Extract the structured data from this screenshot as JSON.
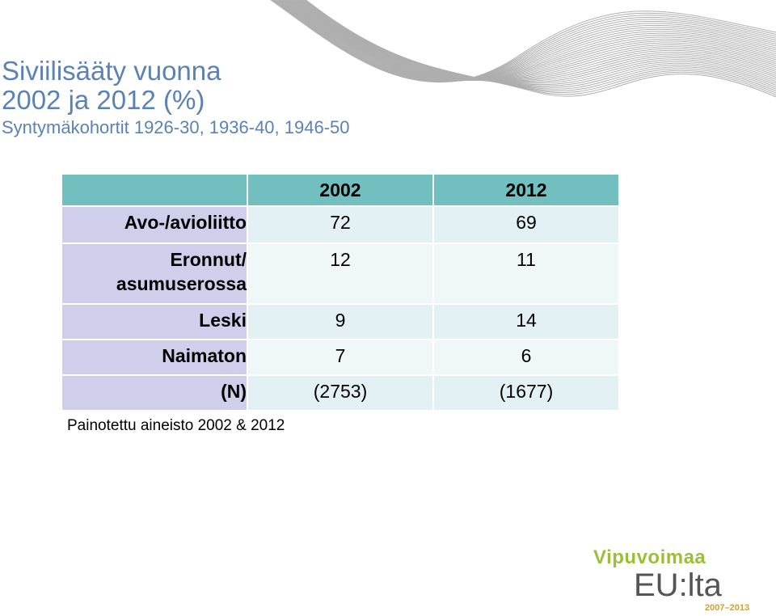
{
  "title": {
    "line1": "Siviilisääty vuonna",
    "line2": "2002 ja 2012 (%)",
    "subtitle": "Syntymäkohortit 1926-30, 1936-40, 1946-50"
  },
  "table": {
    "header": [
      "",
      "2002",
      "2012"
    ],
    "rows": [
      {
        "label": "Avo-/avioliitto",
        "v2002": "72",
        "v2012": "69"
      },
      {
        "label_line1": "Eronnut/",
        "label_line2": "asumuserossa",
        "v2002": "12",
        "v2012": "11"
      },
      {
        "label": "Leski",
        "v2002": "9",
        "v2012": "14"
      },
      {
        "label": "Naimaton",
        "v2002": "7",
        "v2012": "6"
      },
      {
        "label": "(N)",
        "v2002": "(2753)",
        "v2012": "(1677)"
      }
    ]
  },
  "note": "Painotettu aineisto 2002 & 2012",
  "logo": {
    "top": "Vipuvoimaa",
    "main": "EU:lta",
    "years": "2007–2013"
  },
  "colors": {
    "title": "#5b82b4",
    "header": "#72bfbf",
    "label_col": "#cfcfec",
    "logo_green": "#9cbf3a"
  }
}
